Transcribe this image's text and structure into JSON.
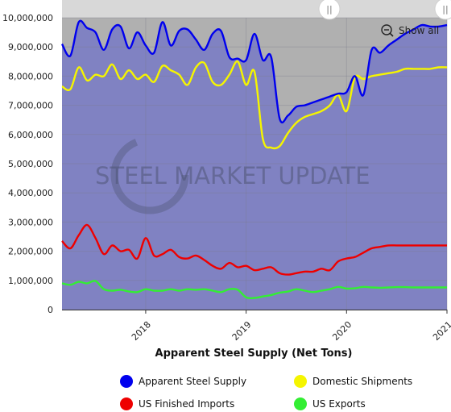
{
  "chart_data": {
    "type": "area",
    "title": "",
    "xlabel": "Apparent Steel Supply (Net Tons)",
    "ylabel": "",
    "ylim": [
      0,
      10000000
    ],
    "y_ticks": [
      0,
      1000000,
      2000000,
      3000000,
      4000000,
      5000000,
      6000000,
      7000000,
      8000000,
      9000000,
      10000000
    ],
    "y_tick_labels": [
      "0",
      "1,000,000",
      "2,000,000",
      "3,000,000",
      "4,000,000",
      "5,000,000",
      "6,000,000",
      "7,000,000",
      "8,000,000",
      "9,000,000",
      "10,000,000"
    ],
    "x_range": [
      "2017-03",
      "2021-01"
    ],
    "x_ticks": [
      "2018-01",
      "2019-01",
      "2020-01",
      "2021-01"
    ],
    "x_tick_labels": [
      "2018",
      "2019",
      "2020",
      "2021"
    ],
    "grid": true,
    "legend_position": "bottom",
    "watermark": "STEEL MARKET UPDATE",
    "x": [
      "2017-03",
      "2017-04",
      "2017-05",
      "2017-06",
      "2017-07",
      "2017-08",
      "2017-09",
      "2017-10",
      "2017-11",
      "2017-12",
      "2018-01",
      "2018-02",
      "2018-03",
      "2018-04",
      "2018-05",
      "2018-06",
      "2018-07",
      "2018-08",
      "2018-09",
      "2018-10",
      "2018-11",
      "2018-12",
      "2019-01",
      "2019-02",
      "2019-03",
      "2019-04",
      "2019-05",
      "2019-06",
      "2019-07",
      "2019-08",
      "2019-09",
      "2019-10",
      "2019-11",
      "2019-12",
      "2020-01",
      "2020-02",
      "2020-03",
      "2020-04",
      "2020-05",
      "2020-06",
      "2020-07",
      "2020-08",
      "2020-09",
      "2020-10",
      "2020-11",
      "2020-12",
      "2021-01"
    ],
    "series": [
      {
        "name": "Apparent Steel Supply",
        "color": "#0000ee",
        "values": [
          9100000,
          8700000,
          9850000,
          9650000,
          9500000,
          8900000,
          9600000,
          9700000,
          8950000,
          9500000,
          9050000,
          8800000,
          9850000,
          9050000,
          9550000,
          9600000,
          9250000,
          8900000,
          9450000,
          9550000,
          8650000,
          8600000,
          8550000,
          9450000,
          8550000,
          8650000,
          6550000,
          6650000,
          6950000,
          7000000,
          7100000,
          7200000,
          7300000,
          7400000,
          7450000,
          8000000,
          7350000,
          8900000,
          8800000,
          9050000,
          9250000,
          9450000,
          9600000,
          9750000,
          9700000,
          9700000,
          9750000
        ]
      },
      {
        "name": "Domestic Shipments",
        "color": "#f5f500",
        "values": [
          7650000,
          7550000,
          8300000,
          7850000,
          8050000,
          8000000,
          8400000,
          7900000,
          8200000,
          7900000,
          8050000,
          7800000,
          8350000,
          8200000,
          8050000,
          7700000,
          8300000,
          8450000,
          7800000,
          7700000,
          8050000,
          8500000,
          7700000,
          8150000,
          5850000,
          5550000,
          5600000,
          6050000,
          6400000,
          6600000,
          6700000,
          6800000,
          7000000,
          7350000,
          6800000,
          7950000,
          7900000,
          8000000,
          8050000,
          8100000,
          8150000,
          8250000,
          8250000,
          8250000,
          8250000,
          8300000,
          8300000
        ]
      },
      {
        "name": "US Finished Imports",
        "color": "#ee0000",
        "values": [
          2350000,
          2100000,
          2550000,
          2900000,
          2450000,
          1900000,
          2200000,
          2000000,
          2050000,
          1750000,
          2450000,
          1850000,
          1900000,
          2050000,
          1800000,
          1750000,
          1850000,
          1700000,
          1500000,
          1400000,
          1600000,
          1450000,
          1500000,
          1350000,
          1400000,
          1450000,
          1250000,
          1200000,
          1250000,
          1300000,
          1300000,
          1400000,
          1350000,
          1650000,
          1750000,
          1800000,
          1950000,
          2100000,
          2150000,
          2200000,
          2200000,
          2200000,
          2200000,
          2200000,
          2200000,
          2200000,
          2200000
        ]
      },
      {
        "name": "US Exports",
        "color": "#33ee33",
        "values": [
          900000,
          850000,
          950000,
          900000,
          980000,
          700000,
          650000,
          680000,
          620000,
          600000,
          700000,
          650000,
          650000,
          700000,
          650000,
          700000,
          680000,
          700000,
          650000,
          600000,
          700000,
          680000,
          420000,
          400000,
          450000,
          500000,
          580000,
          620000,
          700000,
          650000,
          600000,
          650000,
          700000,
          780000,
          720000,
          730000,
          780000,
          760000,
          750000,
          760000,
          770000,
          770000,
          760000,
          760000,
          760000,
          760000,
          760000
        ]
      }
    ]
  },
  "controls": {
    "show_all_label": "Show all",
    "left_handle_glyph": "||",
    "right_handle_glyph": "||"
  },
  "icons": {
    "zoom_out": "zoom-out-icon"
  },
  "legend": {
    "items": [
      {
        "label": "Apparent Steel Supply",
        "color": "#0000ee"
      },
      {
        "label": "Domestic Shipments",
        "color": "#f5f500"
      },
      {
        "label": "US Finished Imports",
        "color": "#ee0000"
      },
      {
        "label": "US Exports",
        "color": "#33ee33"
      }
    ]
  }
}
